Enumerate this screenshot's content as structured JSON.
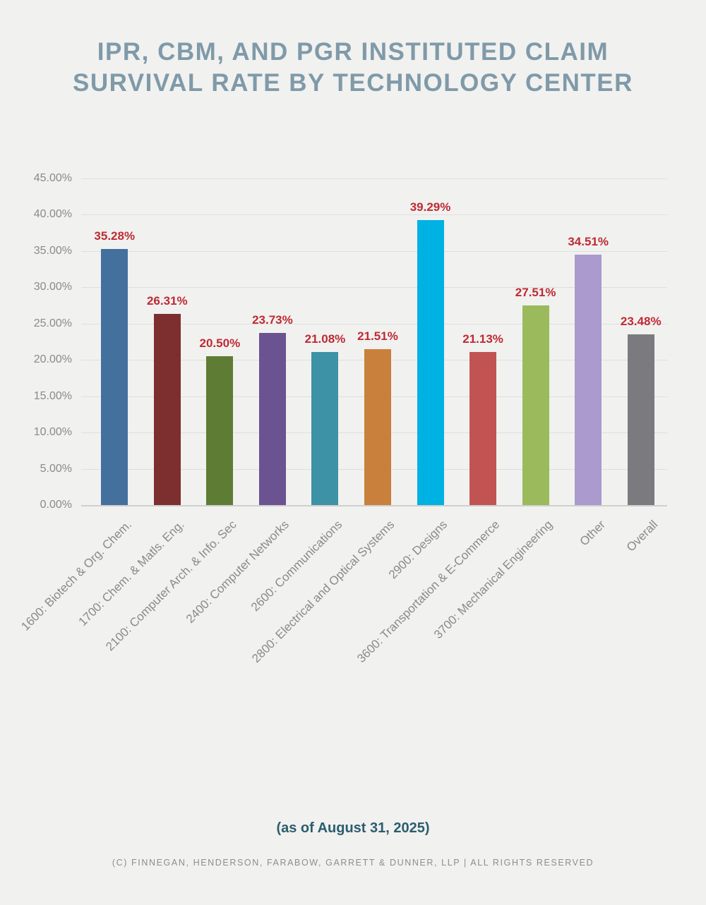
{
  "header": {
    "title_line1": "IPR, CBM, AND PGR INSTITUTED CLAIM",
    "title_line2": "SURVIVAL RATE BY TECHNOLOGY CENTER",
    "title_color": "#7f9aa9"
  },
  "footer": {
    "as_of": "(as of August 31, 2025)",
    "copyright": "(C) FINNEGAN, HENDERSON, FARABOW, GARRETT & DUNNER, LLP | ALL RIGHTS RESERVED"
  },
  "chart_data": {
    "type": "bar",
    "title": "IPR, CBM, and PGR Instituted Claim Survival Rate by Technology Center",
    "categories": [
      "1600: Biotech & Org. Chem.",
      "1700: Chem. & Matls. Eng.",
      "2100: Computer Arch. & Info. Sec",
      "2400: Computer Networks",
      "2600: Communications",
      "2800: Electrical and Optical Systems",
      "2900: Designs",
      "3600: Transportation & E-Commerce",
      "3700: Mechanical Engineering",
      "Other",
      "Overall"
    ],
    "values": [
      35.28,
      26.31,
      20.5,
      23.73,
      21.08,
      21.51,
      39.29,
      21.13,
      27.51,
      34.51,
      23.48
    ],
    "value_labels": [
      "35.28%",
      "26.31%",
      "20.50%",
      "23.73%",
      "21.08%",
      "21.51%",
      "39.29%",
      "21.13%",
      "27.51%",
      "34.51%",
      "23.48%"
    ],
    "bar_colors": [
      "#44709e",
      "#7d2f2f",
      "#5e7c33",
      "#6b5290",
      "#3e92a5",
      "#c9803c",
      "#00b2e3",
      "#c15453",
      "#9aba5c",
      "#aa9ace",
      "#7b7a7f"
    ],
    "xlabel": "",
    "ylabel": "",
    "ylim": [
      0,
      45
    ],
    "y_tick_values": [
      45,
      40,
      35,
      30,
      25,
      20,
      15,
      10,
      5,
      0
    ],
    "y_tick_labels": [
      "45.00%",
      "40.00%",
      "35.00%",
      "30.00%",
      "25.00%",
      "20.00%",
      "15.00%",
      "10.00%",
      "5.00%",
      "0.00%"
    ],
    "grid": true,
    "legend": "none",
    "value_label_color": "#be2a34",
    "axis_text_color": "#8a8a8a",
    "background_color": "#f1f1ef",
    "gridline_color": "#dfdfdd"
  }
}
